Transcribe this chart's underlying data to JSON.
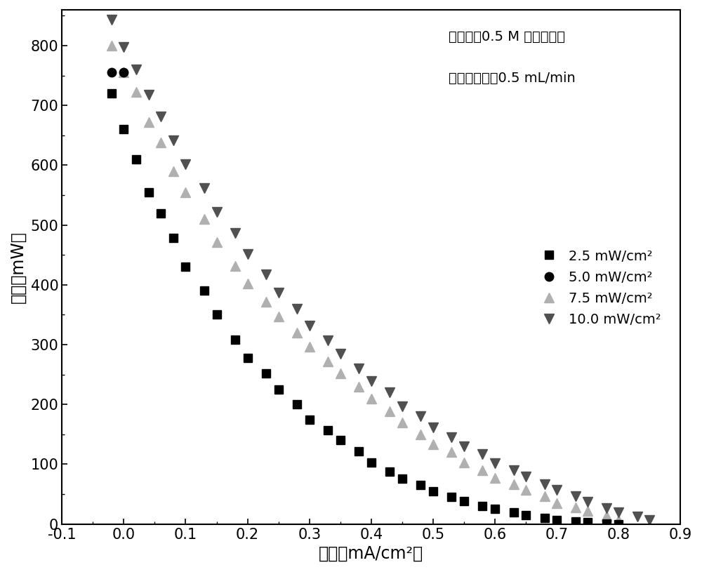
{
  "xlabel": "电流（mA/cm²）",
  "ylabel": "电压（mW）",
  "annotation_line1": "电解液：0.5 M 硫酸水溶液",
  "annotation_line2": "电解液流量：0.5 mL/min",
  "xlim": [
    -0.1,
    0.9
  ],
  "ylim": [
    0,
    860
  ],
  "xticks": [
    -0.1,
    0.0,
    0.1,
    0.2,
    0.3,
    0.4,
    0.5,
    0.6,
    0.7,
    0.8,
    0.9
  ],
  "yticks": [
    0,
    100,
    200,
    300,
    400,
    500,
    600,
    700,
    800
  ],
  "series": [
    {
      "label": "2.5 mW/cm²",
      "marker": "s",
      "color": "#000000",
      "markersize": 9,
      "zorder": 3,
      "x": [
        -0.02,
        0.0,
        0.02,
        0.04,
        0.06,
        0.08,
        0.1,
        0.13,
        0.15,
        0.18,
        0.2,
        0.23,
        0.25,
        0.28,
        0.3,
        0.33,
        0.35,
        0.38,
        0.4,
        0.43,
        0.45,
        0.48,
        0.5,
        0.53,
        0.55,
        0.58,
        0.6,
        0.63,
        0.65,
        0.68,
        0.7,
        0.73,
        0.75,
        0.78,
        0.8
      ],
      "y": [
        720,
        660,
        610,
        555,
        520,
        478,
        430,
        390,
        350,
        308,
        278,
        252,
        225,
        200,
        175,
        157,
        140,
        122,
        103,
        88,
        76,
        65,
        55,
        45,
        38,
        30,
        25,
        20,
        15,
        10,
        7,
        4,
        3,
        1,
        0
      ]
    },
    {
      "label": "5.0 mW/cm²",
      "marker": "o",
      "color": "#000000",
      "markersize": 9,
      "zorder": 4,
      "x": [
        -0.02,
        0.0
      ],
      "y": [
        755,
        755
      ]
    },
    {
      "label": "7.5 mW/cm²",
      "marker": "^",
      "color": "#b0b0b0",
      "markersize": 10,
      "zorder": 2,
      "x": [
        -0.02,
        0.0,
        0.02,
        0.04,
        0.06,
        0.08,
        0.1,
        0.13,
        0.15,
        0.18,
        0.2,
        0.23,
        0.25,
        0.28,
        0.3,
        0.33,
        0.35,
        0.38,
        0.4,
        0.43,
        0.45,
        0.48,
        0.5,
        0.53,
        0.55,
        0.58,
        0.6,
        0.63,
        0.65,
        0.68,
        0.7,
        0.73,
        0.75,
        0.78,
        0.8
      ],
      "y": [
        800,
        755,
        722,
        672,
        638,
        590,
        555,
        510,
        472,
        432,
        402,
        372,
        347,
        320,
        297,
        272,
        252,
        230,
        210,
        188,
        170,
        150,
        133,
        120,
        103,
        90,
        77,
        66,
        57,
        46,
        35,
        28,
        22,
        14,
        7
      ]
    },
    {
      "label": "10.0 mW/cm²",
      "marker": "v",
      "color": "#505050",
      "markersize": 10,
      "zorder": 2,
      "x": [
        -0.02,
        0.0,
        0.02,
        0.04,
        0.06,
        0.08,
        0.1,
        0.13,
        0.15,
        0.18,
        0.2,
        0.23,
        0.25,
        0.28,
        0.3,
        0.33,
        0.35,
        0.38,
        0.4,
        0.43,
        0.45,
        0.48,
        0.5,
        0.53,
        0.55,
        0.58,
        0.6,
        0.63,
        0.65,
        0.68,
        0.7,
        0.73,
        0.75,
        0.78,
        0.8,
        0.83,
        0.85
      ],
      "y": [
        843,
        798,
        760,
        718,
        682,
        642,
        602,
        562,
        522,
        487,
        452,
        418,
        387,
        360,
        332,
        307,
        285,
        260,
        239,
        220,
        197,
        180,
        162,
        145,
        130,
        117,
        102,
        90,
        80,
        67,
        57,
        47,
        37,
        27,
        20,
        12,
        7
      ]
    }
  ],
  "background_color": "#ffffff",
  "font_size_labels": 17,
  "font_size_ticks": 15,
  "font_size_legend": 14,
  "font_size_annotation": 14
}
